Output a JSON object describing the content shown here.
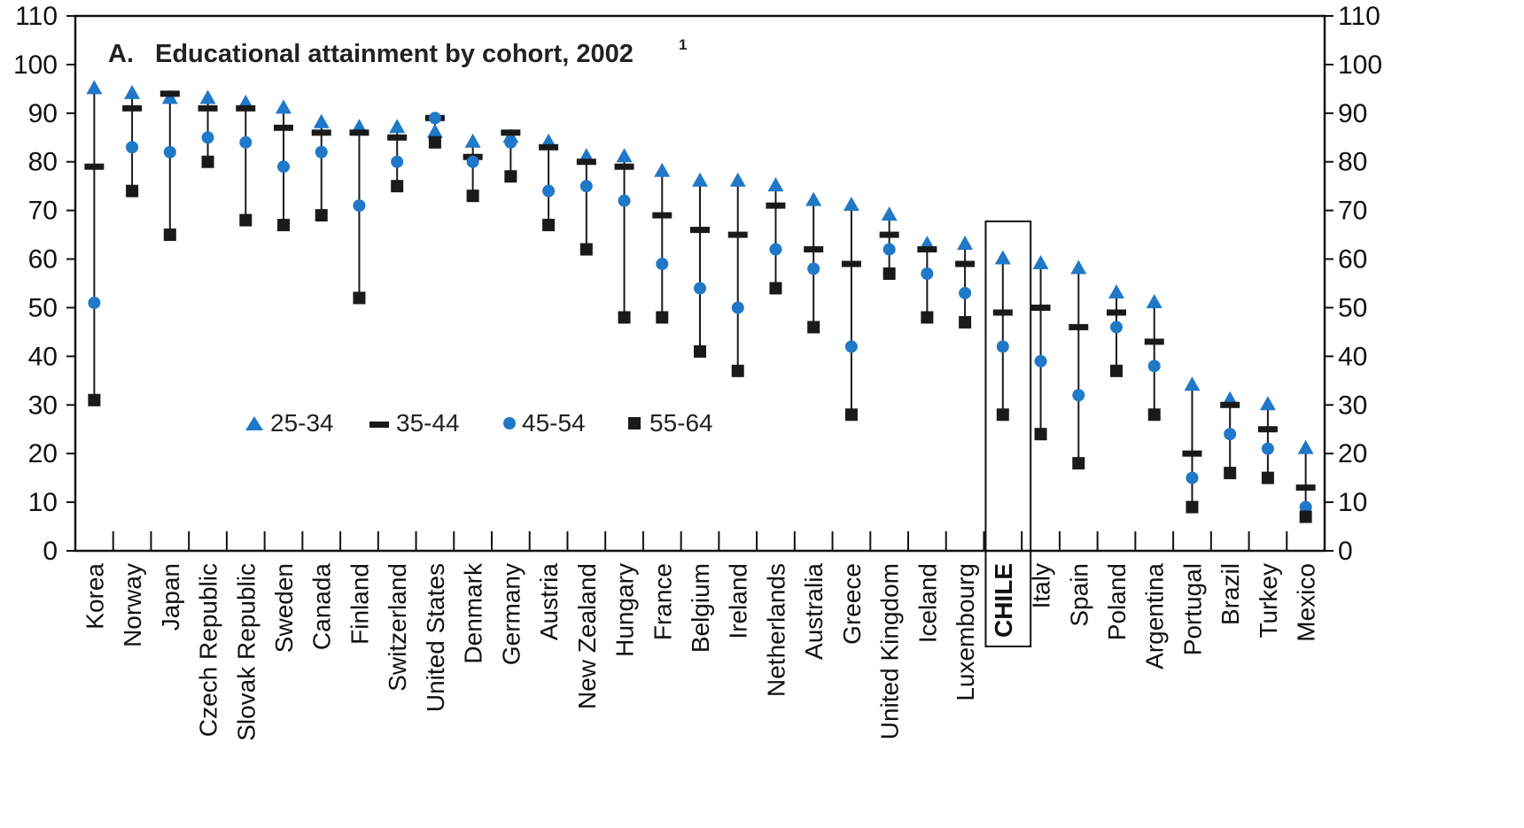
{
  "chart_data": {
    "type": "scatter",
    "title_letter": "A.",
    "title": "Educational attainment by cohort, 2002",
    "title_superscript": "1",
    "xlabel": "",
    "ylabel": "",
    "ylim": [
      0,
      110
    ],
    "yticks": [
      0,
      10,
      20,
      30,
      40,
      50,
      60,
      70,
      80,
      90,
      100,
      110
    ],
    "grid": false,
    "legend_position": "inside-lower-left",
    "highlighted_category": "CHILE",
    "colors": {
      "blue": "#1f78c8",
      "black": "#1a1a1a"
    },
    "categories": [
      "Korea",
      "Norway",
      "Japan",
      "Czech Republic",
      "Slovak Republic",
      "Sweden",
      "Canada",
      "Finland",
      "Switzerland",
      "United States",
      "Denmark",
      "Germany",
      "Austria",
      "New Zealand",
      "Hungary",
      "France",
      "Belgium",
      "Ireland",
      "Netherlands",
      "Australia",
      "Greece",
      "United Kingdom",
      "Iceland",
      "Luxembourg",
      "CHILE",
      "Italy",
      "Spain",
      "Poland",
      "Argentina",
      "Portugal",
      "Brazil",
      "Turkey",
      "Mexico"
    ],
    "series": [
      {
        "name": "25-34",
        "marker": "triangle",
        "values": [
          95,
          94,
          93,
          93,
          92,
          91,
          88,
          87,
          87,
          86,
          84,
          85,
          84,
          81,
          81,
          78,
          76,
          76,
          75,
          72,
          71,
          69,
          63,
          63,
          60,
          59,
          58,
          53,
          51,
          34,
          31,
          30,
          21
        ]
      },
      {
        "name": "35-44",
        "marker": "dash",
        "values": [
          79,
          91,
          94,
          91,
          91,
          87,
          86,
          86,
          85,
          89,
          81,
          86,
          83,
          80,
          79,
          69,
          66,
          65,
          71,
          62,
          59,
          65,
          62,
          59,
          49,
          50,
          46,
          49,
          43,
          20,
          30,
          25,
          13
        ]
      },
      {
        "name": "45-54",
        "marker": "circle",
        "values": [
          51,
          83,
          82,
          85,
          84,
          79,
          82,
          71,
          80,
          89,
          80,
          84,
          74,
          75,
          72,
          59,
          54,
          50,
          62,
          58,
          42,
          62,
          57,
          53,
          42,
          39,
          32,
          46,
          38,
          15,
          24,
          21,
          9
        ]
      },
      {
        "name": "55-64",
        "marker": "square",
        "values": [
          31,
          74,
          65,
          80,
          68,
          67,
          69,
          52,
          75,
          84,
          73,
          77,
          67,
          62,
          48,
          48,
          41,
          37,
          54,
          46,
          28,
          57,
          48,
          47,
          28,
          24,
          18,
          37,
          28,
          9,
          16,
          15,
          7
        ]
      }
    ]
  }
}
